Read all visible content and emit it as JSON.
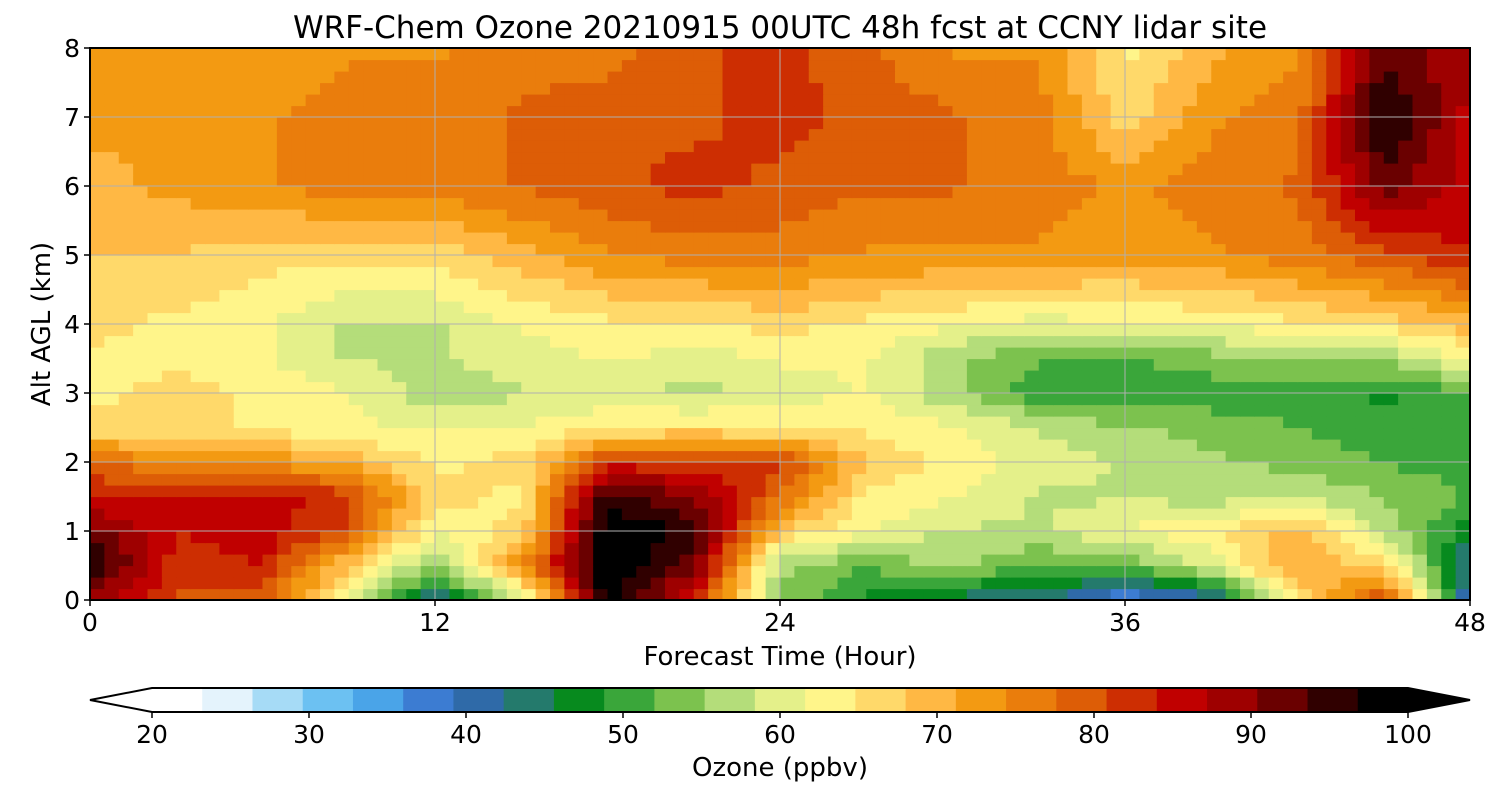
{
  "chart_data": {
    "type": "heatmap",
    "title": "WRF-Chem Ozone  20210915 00UTC 48h fcst at CCNY lidar site",
    "xlabel": "Forecast Time (Hour)",
    "ylabel": "Alt AGL (km)",
    "xlim": [
      0,
      48
    ],
    "ylim": [
      0,
      8
    ],
    "x_ticks": [
      0,
      12,
      24,
      36,
      48
    ],
    "y_ticks": [
      0,
      1,
      2,
      3,
      4,
      5,
      6,
      7,
      8
    ],
    "grid": true,
    "x": [
      0,
      3,
      6,
      9,
      12,
      15,
      18,
      21,
      24,
      27,
      30,
      33,
      36,
      39,
      42,
      45,
      48
    ],
    "y": [
      0,
      0.5,
      1,
      1.5,
      2,
      2.5,
      3,
      3.5,
      4,
      5,
      6,
      7,
      8
    ],
    "values": [
      [
        88,
        80,
        78,
        62,
        42,
        57,
        100,
        82,
        55,
        48,
        44,
        42,
        36,
        40,
        65,
        82,
        38
      ],
      [
        98,
        82,
        84,
        68,
        54,
        74,
        100,
        92,
        56,
        52,
        56,
        52,
        52,
        60,
        72,
        66,
        42
      ],
      [
        92,
        84,
        86,
        80,
        62,
        66,
        100,
        96,
        68,
        62,
        58,
        58,
        62,
        64,
        70,
        58,
        46
      ],
      [
        84,
        84,
        86,
        82,
        66,
        64,
        96,
        90,
        78,
        64,
        62,
        58,
        58,
        57,
        58,
        55,
        52
      ],
      [
        78,
        74,
        74,
        70,
        64,
        66,
        82,
        82,
        82,
        68,
        64,
        60,
        58,
        56,
        54,
        52,
        50
      ],
      [
        66,
        66,
        64,
        62,
        62,
        62,
        64,
        66,
        64,
        64,
        62,
        58,
        56,
        54,
        52,
        50,
        52
      ],
      [
        64,
        66,
        64,
        62,
        56,
        58,
        60,
        57,
        60,
        62,
        56,
        50,
        48,
        50,
        50,
        48,
        52
      ],
      [
        64,
        64,
        62,
        58,
        58,
        60,
        62,
        60,
        62,
        62,
        56,
        52,
        52,
        54,
        56,
        56,
        62
      ],
      [
        66,
        64,
        62,
        58,
        58,
        62,
        64,
        64,
        66,
        64,
        62,
        60,
        62,
        62,
        64,
        66,
        70
      ],
      [
        68,
        68,
        66,
        66,
        66,
        70,
        74,
        76,
        76,
        74,
        74,
        74,
        72,
        74,
        76,
        80,
        84
      ],
      [
        70,
        72,
        74,
        76,
        76,
        78,
        80,
        82,
        80,
        78,
        78,
        76,
        74,
        76,
        78,
        92,
        86
      ],
      [
        72,
        72,
        74,
        76,
        76,
        78,
        80,
        80,
        82,
        80,
        78,
        76,
        66,
        74,
        76,
        98,
        86
      ],
      [
        72,
        72,
        72,
        74,
        74,
        76,
        76,
        80,
        82,
        78,
        74,
        74,
        64,
        70,
        74,
        92,
        88
      ]
    ],
    "colorbar": {
      "label": "Ozone  (ppbv)",
      "ticks": [
        20,
        30,
        40,
        50,
        60,
        70,
        80,
        90,
        100
      ],
      "range": [
        20,
        100
      ],
      "extend": "both",
      "colors": [
        "#ffffff",
        "#e4f3fc",
        "#a6dbf6",
        "#6cc1f2",
        "#4aa4e8",
        "#3c7cd2",
        "#2f6aa8",
        "#247a6c",
        "#078a1e",
        "#3aa63a",
        "#7cc24e",
        "#b4dd7a",
        "#e4f08a",
        "#fff58a",
        "#ffd96a",
        "#ffb844",
        "#f39a12",
        "#ea7d0c",
        "#dd5d06",
        "#cd2e02",
        "#c00000",
        "#9e0000",
        "#6a0000",
        "#300000",
        "#000000"
      ]
    }
  }
}
